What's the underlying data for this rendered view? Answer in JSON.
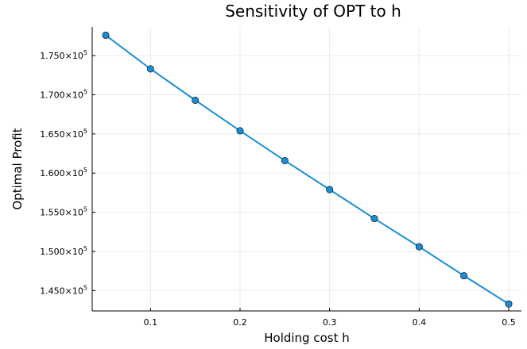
{
  "chart_data": {
    "type": "line",
    "title": "Sensitivity of OPT to h",
    "xlabel": "Holding cost h",
    "ylabel": "Optimal Profit",
    "xlim": [
      0.05,
      0.5
    ],
    "ylim": [
      142500,
      178500
    ],
    "grid": true,
    "series_color": "#1a8ed5",
    "x_ticks": [
      {
        "value": 0.1,
        "label": "0.1"
      },
      {
        "value": 0.2,
        "label": "0.2"
      },
      {
        "value": 0.3,
        "label": "0.3"
      },
      {
        "value": 0.4,
        "label": "0.4"
      },
      {
        "value": 0.5,
        "label": "0.5"
      }
    ],
    "y_ticks": [
      {
        "value": 145000,
        "label": "1.450×10",
        "exp": "5"
      },
      {
        "value": 150000,
        "label": "1.500×10",
        "exp": "5"
      },
      {
        "value": 155000,
        "label": "1.550×10",
        "exp": "5"
      },
      {
        "value": 160000,
        "label": "1.600×10",
        "exp": "5"
      },
      {
        "value": 165000,
        "label": "1.650×10",
        "exp": "5"
      },
      {
        "value": 170000,
        "label": "1.700×10",
        "exp": "5"
      },
      {
        "value": 175000,
        "label": "1.750×10",
        "exp": "5"
      }
    ],
    "x": [
      0.05,
      0.1,
      0.15,
      0.2,
      0.25,
      0.3,
      0.35,
      0.4,
      0.45,
      0.5
    ],
    "y": [
      177600,
      173300,
      169300,
      165400,
      161600,
      157900,
      154200,
      150600,
      146900,
      143300
    ]
  }
}
